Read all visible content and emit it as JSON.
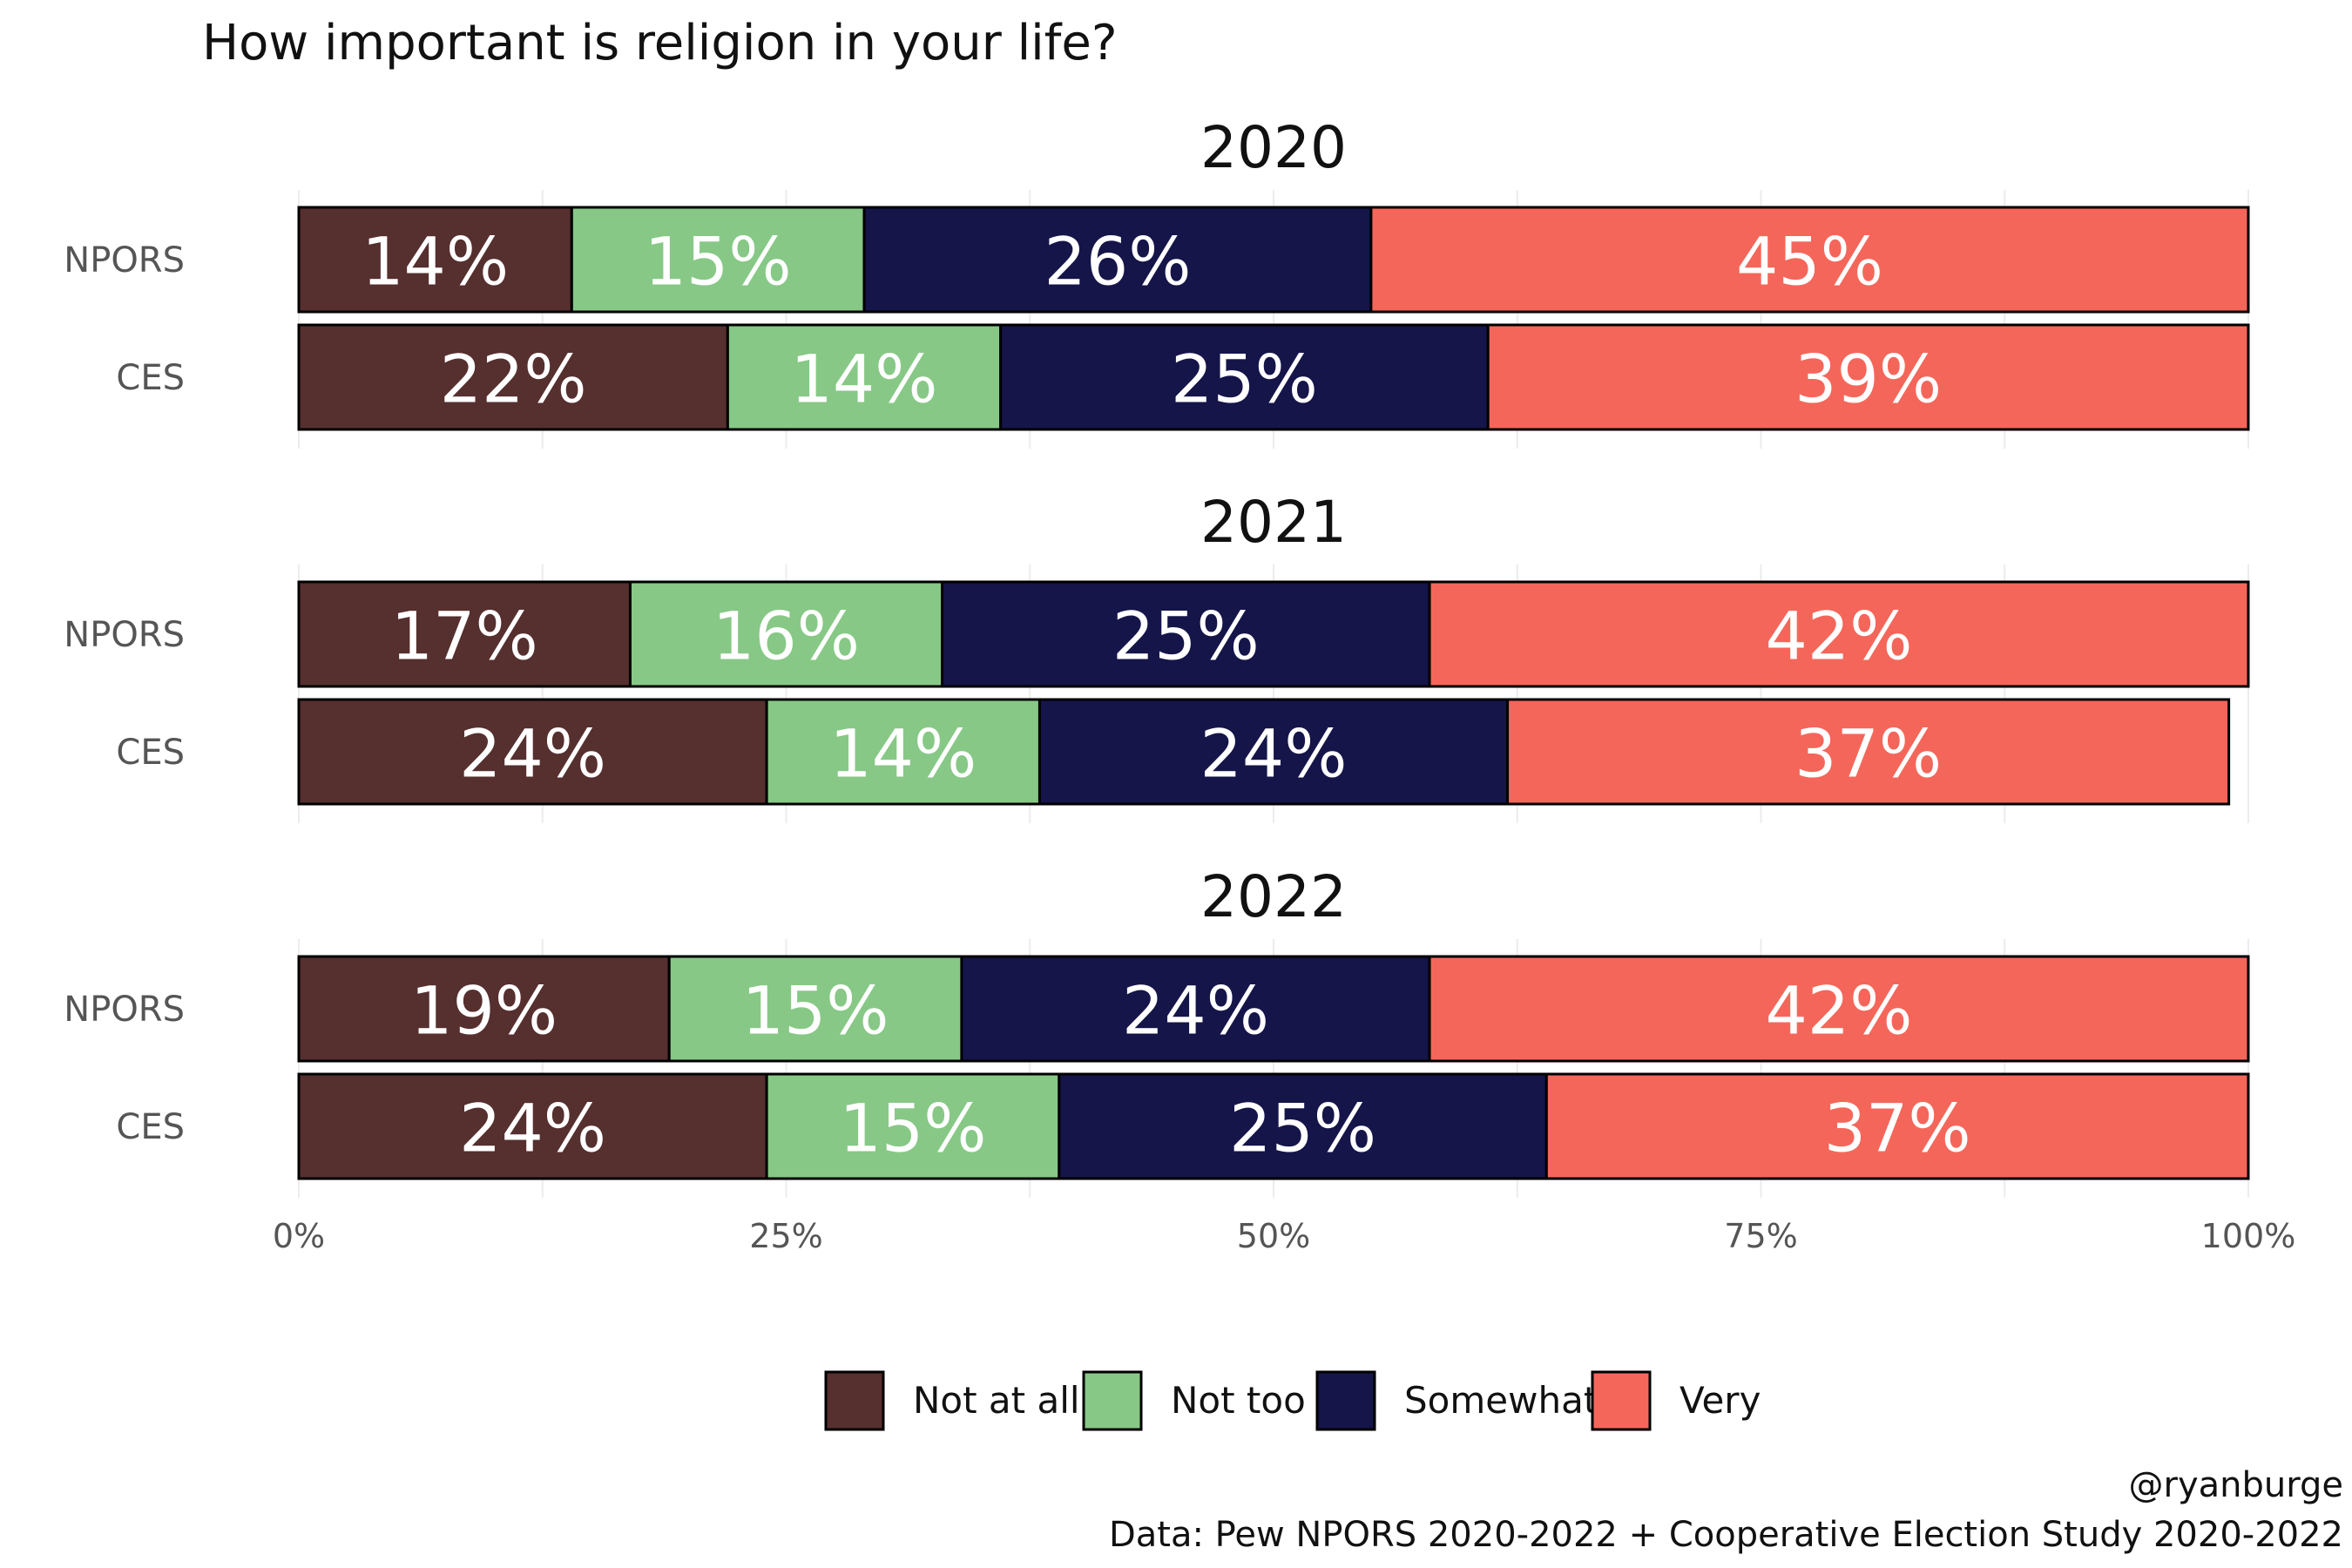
{
  "chart_data": {
    "type": "bar",
    "orientation": "horizontal",
    "stacked": true,
    "title": "How important is religion in your life?",
    "facets": [
      {
        "label": "2020",
        "rows": [
          {
            "label": "NPORS",
            "values": [
              14,
              15,
              26,
              45
            ],
            "labels": [
              "14%",
              "15%",
              "26%",
              "45%"
            ]
          },
          {
            "label": "CES",
            "values": [
              22,
              14,
              25,
              39
            ],
            "labels": [
              "22%",
              "14%",
              "25%",
              "39%"
            ]
          }
        ]
      },
      {
        "label": "2021",
        "rows": [
          {
            "label": "NPORS",
            "values": [
              17,
              16,
              25,
              42
            ],
            "labels": [
              "17%",
              "16%",
              "25%",
              "42%"
            ]
          },
          {
            "label": "CES",
            "values": [
              24,
              14,
              24,
              37
            ],
            "labels": [
              "24%",
              "14%",
              "24%",
              "37%"
            ]
          }
        ]
      },
      {
        "label": "2022",
        "rows": [
          {
            "label": "NPORS",
            "values": [
              19,
              15,
              24,
              42
            ],
            "labels": [
              "19%",
              "15%",
              "24%",
              "42%"
            ]
          },
          {
            "label": "CES",
            "values": [
              24,
              15,
              25,
              37
            ],
            "labels": [
              "24%",
              "15%",
              "25%",
              "37%"
            ]
          }
        ]
      }
    ],
    "series": [
      {
        "name": "Not at all",
        "color": "#562f2f"
      },
      {
        "name": "Not too",
        "color": "#87c886"
      },
      {
        "name": "Somewhat",
        "color": "#15154a"
      },
      {
        "name": "Very",
        "color": "#f5665a"
      }
    ],
    "xlim": [
      0,
      100
    ],
    "xticks": [
      0,
      25,
      50,
      75,
      100
    ],
    "xtick_labels": [
      "0%",
      "25%",
      "50%",
      "75%",
      "100%"
    ],
    "legend_position": "bottom",
    "grid": true
  },
  "caption": {
    "author": "@ryanburge",
    "source": "Data: Pew NPORS 2020-2022 + Cooperative Election Study 2020-2022"
  }
}
